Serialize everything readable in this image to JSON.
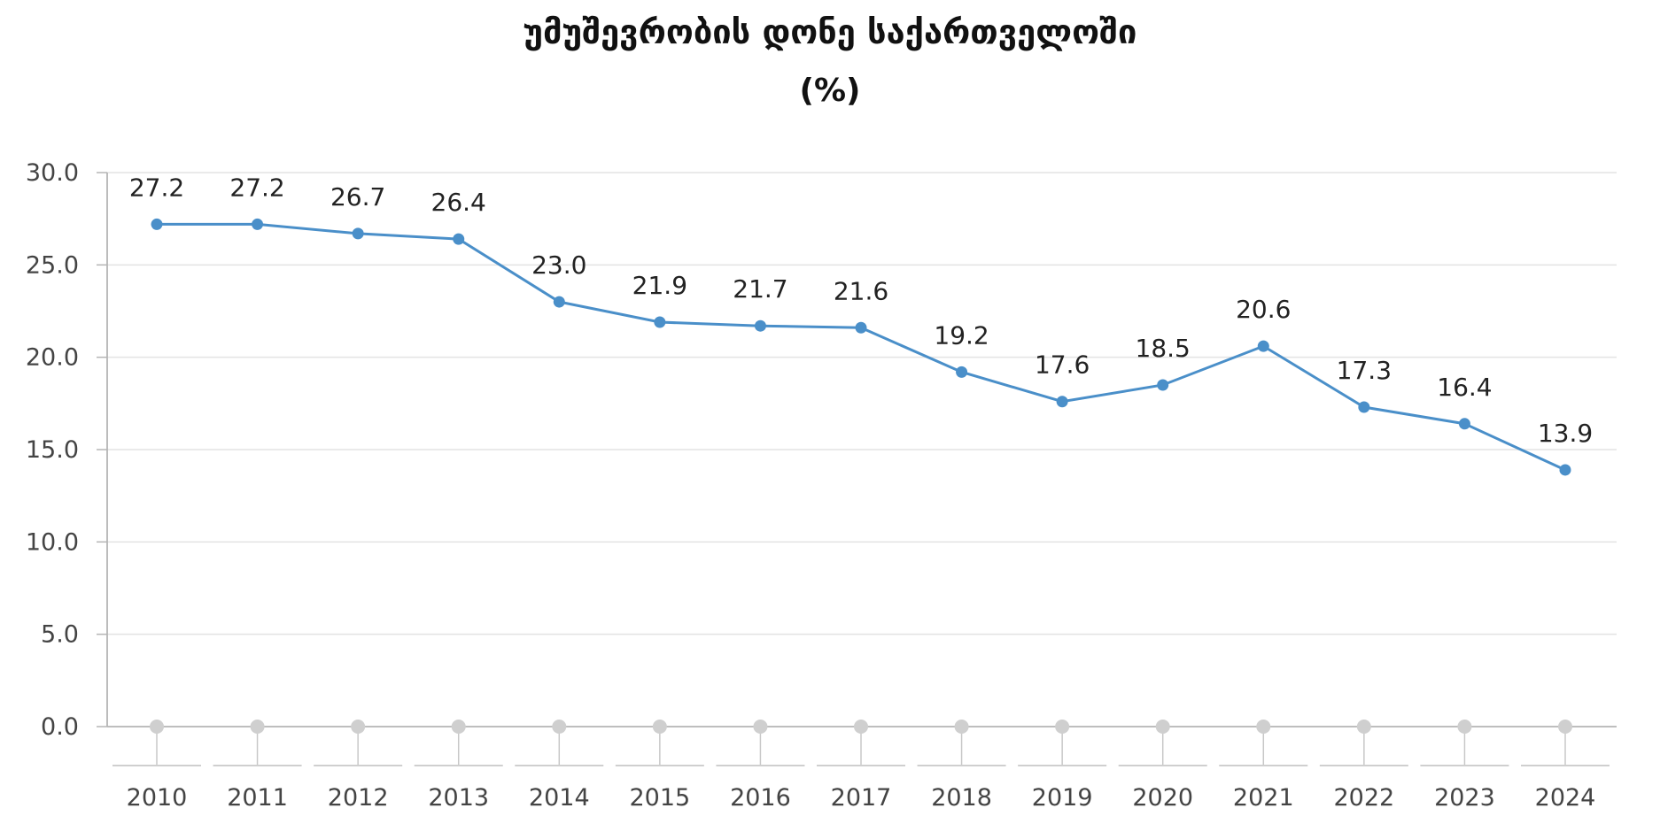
{
  "chart_data": {
    "type": "line",
    "title": "უმუშევრობის დონე საქართველოში",
    "subtitle": "(%)",
    "xlabel": "",
    "ylabel": "",
    "categories": [
      "2010",
      "2011",
      "2012",
      "2013",
      "2014",
      "2015",
      "2016",
      "2017",
      "2018",
      "2019",
      "2020",
      "2021",
      "2022",
      "2023",
      "2024"
    ],
    "series": [
      {
        "values": [
          27.2,
          27.2,
          26.7,
          26.4,
          23.0,
          21.9,
          21.7,
          21.6,
          19.2,
          17.6,
          18.5,
          20.6,
          17.3,
          16.4,
          13.9
        ]
      }
    ],
    "data_labels": [
      "27.2",
      "27.2",
      "26.7",
      "26.4",
      "23.0",
      "21.9",
      "21.7",
      "21.6",
      "19.2",
      "17.6",
      "18.5",
      "20.6",
      "17.3",
      "16.4",
      "13.9"
    ],
    "y_ticks": [
      "0.0",
      "5.0",
      "10.0",
      "15.0",
      "20.0",
      "25.0",
      "30.0"
    ],
    "ylim": [
      0,
      30
    ],
    "grid": true,
    "legend": "none",
    "colors": {
      "series": "#4a8fc9",
      "grid": "#e3e3e3",
      "axis": "#b5b5b5",
      "baseline_marker": "#cfcfcf"
    }
  }
}
